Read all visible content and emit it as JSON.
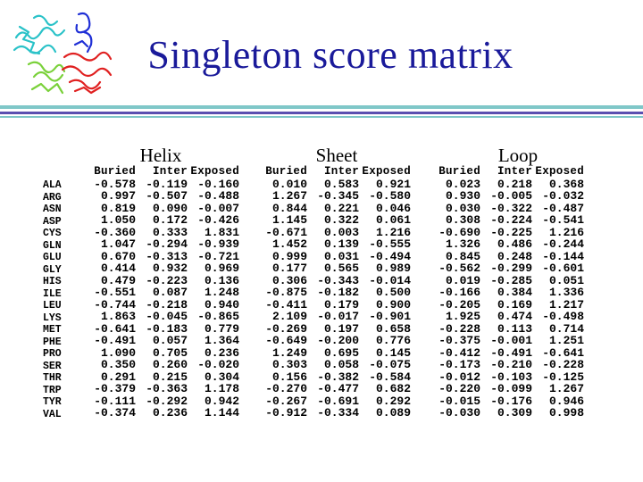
{
  "title": "Singleton score matrix",
  "column_headers": [
    "Buried",
    "Inter",
    "Exposed"
  ],
  "residues": [
    "ALA",
    "ARG",
    "ASN",
    "ASP",
    "CYS",
    "GLN",
    "GLU",
    "GLY",
    "HIS",
    "ILE",
    "LEU",
    "LYS",
    "MET",
    "PHE",
    "PRO",
    "SER",
    "THR",
    "TRP",
    "TYR",
    "VAL"
  ],
  "sections": [
    {
      "name": "Helix",
      "rows": [
        [
          "-0.578",
          "-0.119",
          "-0.160"
        ],
        [
          "0.997",
          "-0.507",
          "-0.488"
        ],
        [
          "0.819",
          "0.090",
          "-0.007"
        ],
        [
          "1.050",
          "0.172",
          "-0.426"
        ],
        [
          "-0.360",
          "0.333",
          "1.831"
        ],
        [
          "1.047",
          "-0.294",
          "-0.939"
        ],
        [
          "0.670",
          "-0.313",
          "-0.721"
        ],
        [
          "0.414",
          "0.932",
          "0.969"
        ],
        [
          "0.479",
          "-0.223",
          "0.136"
        ],
        [
          "-0.551",
          "0.087",
          "1.248"
        ],
        [
          "-0.744",
          "-0.218",
          "0.940"
        ],
        [
          "1.863",
          "-0.045",
          "-0.865"
        ],
        [
          "-0.641",
          "-0.183",
          "0.779"
        ],
        [
          "-0.491",
          "0.057",
          "1.364"
        ],
        [
          "1.090",
          "0.705",
          "0.236"
        ],
        [
          "0.350",
          "0.260",
          "-0.020"
        ],
        [
          "0.291",
          "0.215",
          "0.304"
        ],
        [
          "-0.379",
          "-0.363",
          "1.178"
        ],
        [
          "-0.111",
          "-0.292",
          "0.942"
        ],
        [
          "-0.374",
          "0.236",
          "1.144"
        ]
      ]
    },
    {
      "name": "Sheet",
      "rows": [
        [
          "0.010",
          "0.583",
          "0.921"
        ],
        [
          "1.267",
          "-0.345",
          "-0.580"
        ],
        [
          "0.844",
          "0.221",
          "0.046"
        ],
        [
          "1.145",
          "0.322",
          "0.061"
        ],
        [
          "-0.671",
          "0.003",
          "1.216"
        ],
        [
          "1.452",
          "0.139",
          "-0.555"
        ],
        [
          "0.999",
          "0.031",
          "-0.494"
        ],
        [
          "0.177",
          "0.565",
          "0.989"
        ],
        [
          "0.306",
          "-0.343",
          "-0.014"
        ],
        [
          "-0.875",
          "-0.182",
          "0.500"
        ],
        [
          "-0.411",
          "0.179",
          "0.900"
        ],
        [
          "2.109",
          "-0.017",
          "-0.901"
        ],
        [
          "-0.269",
          "0.197",
          "0.658"
        ],
        [
          "-0.649",
          "-0.200",
          "0.776"
        ],
        [
          "1.249",
          "0.695",
          "0.145"
        ],
        [
          "0.303",
          "0.058",
          "-0.075"
        ],
        [
          "0.156",
          "-0.382",
          "-0.584"
        ],
        [
          "-0.270",
          "-0.477",
          "0.682"
        ],
        [
          "-0.267",
          "-0.691",
          "0.292"
        ],
        [
          "-0.912",
          "-0.334",
          "0.089"
        ]
      ]
    },
    {
      "name": "Loop",
      "rows": [
        [
          "0.023",
          "0.218",
          "0.368"
        ],
        [
          "0.930",
          "-0.005",
          "-0.032"
        ],
        [
          "0.030",
          "-0.322",
          "-0.487"
        ],
        [
          "0.308",
          "-0.224",
          "-0.541"
        ],
        [
          "-0.690",
          "-0.225",
          "1.216"
        ],
        [
          "1.326",
          "0.486",
          "-0.244"
        ],
        [
          "0.845",
          "0.248",
          "-0.144"
        ],
        [
          "-0.562",
          "-0.299",
          "-0.601"
        ],
        [
          "0.019",
          "-0.285",
          "0.051"
        ],
        [
          "-0.166",
          "0.384",
          "1.336"
        ],
        [
          "-0.205",
          "0.169",
          "1.217"
        ],
        [
          "1.925",
          "0.474",
          "-0.498"
        ],
        [
          "-0.228",
          "0.113",
          "0.714"
        ],
        [
          "-0.375",
          "-0.001",
          "1.251"
        ],
        [
          "-0.412",
          "-0.491",
          "-0.641"
        ],
        [
          "-0.173",
          "-0.210",
          "-0.228"
        ],
        [
          "-0.012",
          "-0.103",
          "-0.125"
        ],
        [
          "-0.220",
          "-0.099",
          "1.267"
        ],
        [
          "-0.015",
          "-0.176",
          "0.946"
        ],
        [
          "-0.030",
          "0.309",
          "0.998"
        ]
      ]
    }
  ],
  "colors": {
    "title": "#1a1a9a",
    "rule_light": "#7fc7c8",
    "rule_dark": "#5a4fb0"
  }
}
